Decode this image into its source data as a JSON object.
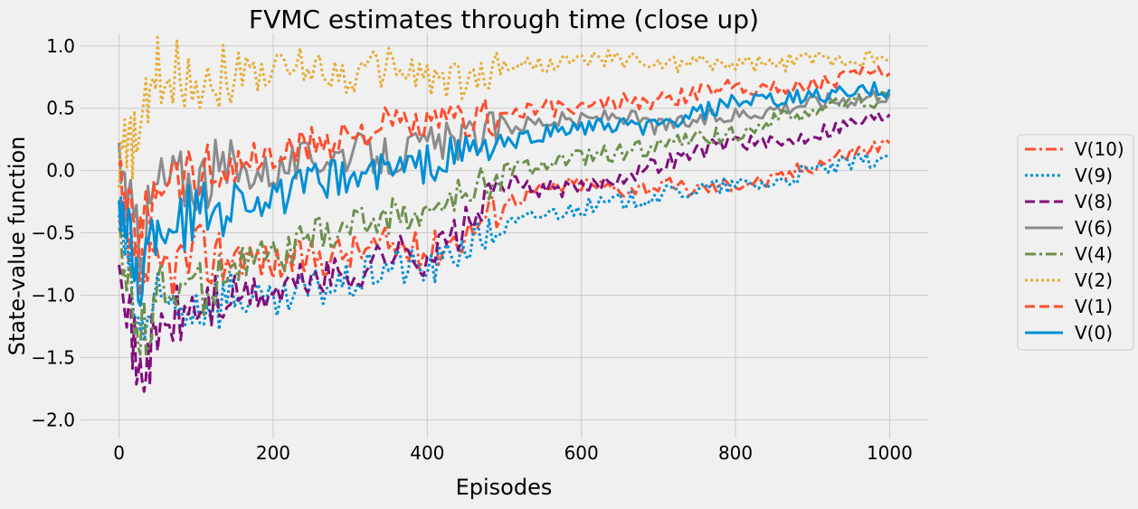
{
  "chart_data": {
    "type": "line",
    "title": "FVMC estimates through time (close up)",
    "xlabel": "Episodes",
    "ylabel": "State-value function",
    "xlim": [
      -50,
      1050
    ],
    "ylim": [
      -2.15,
      1.1
    ],
    "xticks": [
      0,
      200,
      400,
      600,
      800,
      1000
    ],
    "yticks": [
      -2.0,
      -1.5,
      -1.0,
      -0.5,
      0.0,
      0.5,
      1.0
    ],
    "xtick_labels": [
      "0",
      "200",
      "400",
      "600",
      "800",
      "1000"
    ],
    "ytick_labels": [
      "−2.0",
      "−1.5",
      "−1.0",
      "−0.5",
      "0.0",
      "0.5",
      "1.0"
    ],
    "grid": true,
    "legend_position": "right",
    "series": [
      {
        "name": "V(10)",
        "color": "#fc4f30",
        "dash": "dashdot",
        "x": [
          0,
          25,
          50,
          100,
          150,
          200,
          250,
          300,
          350,
          400,
          450,
          500,
          550,
          600,
          650,
          700,
          750,
          800,
          850,
          900,
          950,
          1000
        ],
        "y": [
          -0.5,
          -0.85,
          -0.8,
          -0.7,
          -0.65,
          -0.75,
          -0.7,
          -0.65,
          -0.6,
          -0.65,
          -0.5,
          -0.25,
          -0.15,
          -0.1,
          -0.15,
          -0.12,
          -0.15,
          -0.1,
          -0.08,
          0.05,
          0.15,
          0.22
        ]
      },
      {
        "name": "V(9)",
        "color": "#008fd5",
        "dash": "dotted",
        "x": [
          0,
          25,
          50,
          100,
          150,
          200,
          250,
          300,
          350,
          400,
          450,
          500,
          550,
          600,
          650,
          700,
          750,
          800,
          850,
          900,
          950,
          1000
        ],
        "y": [
          -0.3,
          -1.3,
          -1.1,
          -1.05,
          -1.0,
          -1.1,
          -0.95,
          -0.9,
          -0.75,
          -0.8,
          -0.6,
          -0.45,
          -0.35,
          -0.3,
          -0.25,
          -0.2,
          -0.15,
          -0.12,
          -0.1,
          0.0,
          0.05,
          0.12
        ]
      },
      {
        "name": "V(8)",
        "color": "#810f7c",
        "dash": "dashed",
        "x": [
          0,
          25,
          50,
          100,
          150,
          200,
          250,
          300,
          350,
          400,
          450,
          500,
          550,
          600,
          650,
          700,
          750,
          800,
          850,
          900,
          950,
          1000
        ],
        "y": [
          -0.5,
          -1.7,
          -1.3,
          -1.1,
          -1.0,
          -1.0,
          -0.85,
          -0.85,
          -0.65,
          -0.7,
          -0.45,
          -0.1,
          -0.15,
          -0.15,
          -0.05,
          0.05,
          0.15,
          0.25,
          0.2,
          0.3,
          0.38,
          0.45
        ]
      },
      {
        "name": "V(6)",
        "color": "#8b8b8b",
        "dash": "solid",
        "x": [
          0,
          25,
          50,
          100,
          150,
          200,
          250,
          300,
          350,
          400,
          450,
          500,
          550,
          600,
          650,
          700,
          750,
          800,
          850,
          900,
          950,
          1000
        ],
        "y": [
          0.1,
          -0.6,
          -0.1,
          -0.05,
          0.0,
          0.0,
          0.1,
          0.15,
          0.1,
          0.2,
          0.25,
          0.35,
          0.4,
          0.4,
          0.45,
          0.35,
          0.4,
          0.45,
          0.5,
          0.55,
          0.58,
          0.62
        ]
      },
      {
        "name": "V(4)",
        "color": "#6d904f",
        "dash": "dashdot",
        "x": [
          0,
          25,
          50,
          100,
          150,
          200,
          250,
          300,
          350,
          400,
          450,
          500,
          550,
          600,
          650,
          700,
          750,
          800,
          850,
          900,
          950,
          1000
        ],
        "y": [
          -0.4,
          -1.4,
          -1.0,
          -0.95,
          -0.75,
          -0.7,
          -0.55,
          -0.45,
          -0.35,
          -0.35,
          -0.2,
          0.0,
          0.05,
          0.1,
          0.15,
          0.2,
          0.25,
          0.3,
          0.4,
          0.48,
          0.55,
          0.58
        ]
      },
      {
        "name": "V(2)",
        "color": "#e5ae38",
        "dash": "dotted",
        "x": [
          0,
          25,
          50,
          100,
          150,
          200,
          250,
          300,
          350,
          400,
          450,
          500,
          550,
          600,
          650,
          700,
          750,
          800,
          850,
          900,
          950,
          1000
        ],
        "y": [
          0.1,
          0.25,
          0.8,
          0.75,
          0.8,
          0.8,
          0.85,
          0.75,
          0.85,
          0.75,
          0.7,
          0.85,
          0.85,
          0.88,
          0.9,
          0.85,
          0.87,
          0.85,
          0.85,
          0.9,
          0.9,
          0.88
        ]
      },
      {
        "name": "V(1)",
        "color": "#fc4f30",
        "dash": "dashed",
        "x": [
          0,
          25,
          50,
          100,
          150,
          200,
          250,
          300,
          350,
          400,
          450,
          500,
          550,
          600,
          650,
          700,
          750,
          800,
          850,
          900,
          950,
          1000
        ],
        "y": [
          -0.1,
          -0.6,
          0.0,
          -0.05,
          0.05,
          0.1,
          0.2,
          0.3,
          0.35,
          0.35,
          0.4,
          0.45,
          0.5,
          0.5,
          0.55,
          0.55,
          0.62,
          0.7,
          0.65,
          0.7,
          0.75,
          0.78
        ]
      },
      {
        "name": "V(0)",
        "color": "#008fd5",
        "dash": "solid",
        "x": [
          0,
          25,
          50,
          100,
          150,
          200,
          250,
          300,
          350,
          400,
          450,
          500,
          550,
          600,
          650,
          700,
          750,
          800,
          850,
          900,
          950,
          1000
        ],
        "y": [
          -0.2,
          -0.9,
          -0.4,
          -0.35,
          -0.2,
          -0.25,
          -0.1,
          -0.05,
          0.0,
          0.05,
          0.15,
          0.2,
          0.3,
          0.35,
          0.35,
          0.35,
          0.45,
          0.55,
          0.55,
          0.6,
          0.62,
          0.65
        ]
      }
    ]
  }
}
